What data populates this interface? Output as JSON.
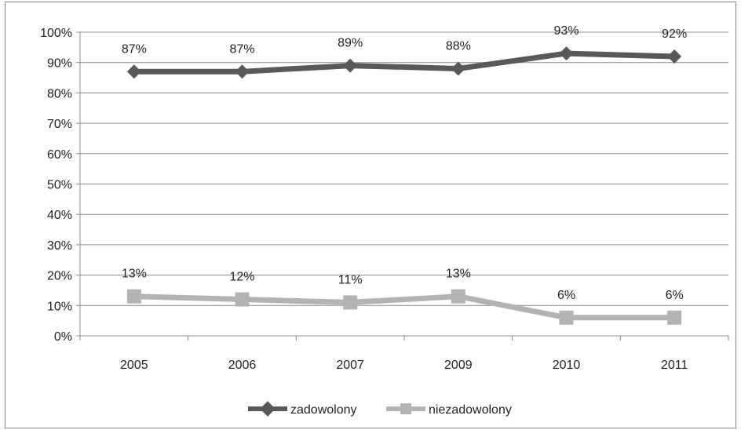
{
  "chart_data": {
    "type": "line",
    "title": "",
    "xlabel": "",
    "ylabel": "",
    "categories": [
      "2005",
      "2006",
      "2007",
      "2009",
      "2010",
      "2011"
    ],
    "ylim": [
      0,
      100
    ],
    "ytick_labels": [
      "0%",
      "10%",
      "20%",
      "30%",
      "40%",
      "50%",
      "60%",
      "70%",
      "80%",
      "90%",
      "100%"
    ],
    "grid": true,
    "legend_position": "bottom",
    "series": [
      {
        "name": "zadowolony",
        "values": [
          87,
          87,
          89,
          88,
          93,
          92
        ],
        "labels": [
          "87%",
          "87%",
          "89%",
          "88%",
          "93%",
          "92%"
        ],
        "color": "#595959",
        "marker": "diamond"
      },
      {
        "name": "niezadowolony",
        "values": [
          13,
          12,
          11,
          13,
          6,
          6
        ],
        "labels": [
          "13%",
          "12%",
          "11%",
          "13%",
          "6%",
          "6%"
        ],
        "color": "#b3b3b3",
        "marker": "square"
      }
    ]
  }
}
